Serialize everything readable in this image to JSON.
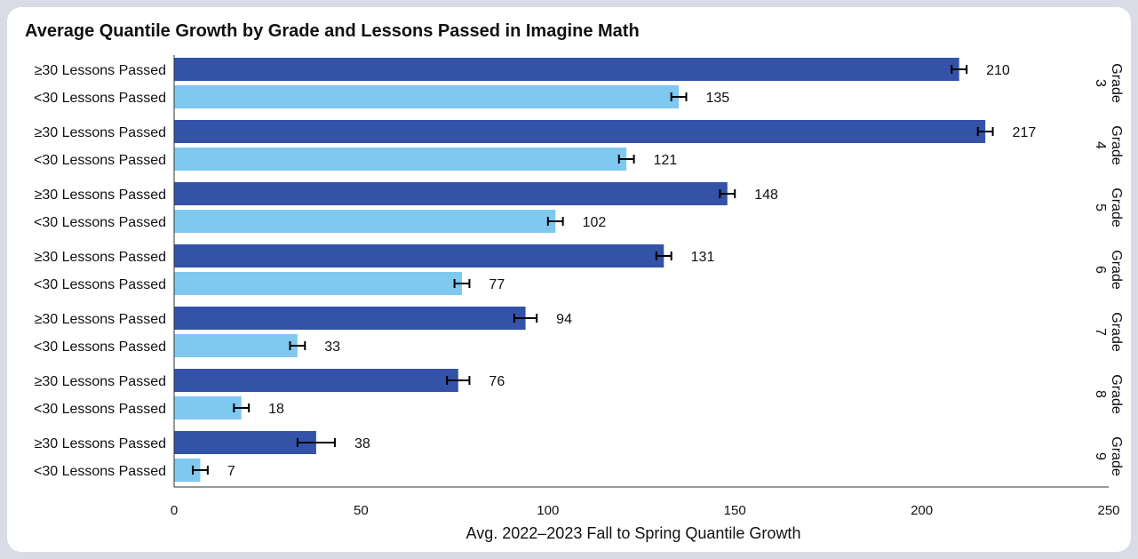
{
  "colors": {
    "ge30": "#3352a8",
    "lt30": "#7fc8f0",
    "error_bar": "#000000",
    "axis": "#333333",
    "background": "#ffffff"
  },
  "chart_data": {
    "type": "bar",
    "orientation": "horizontal",
    "title": "Average Quantile Growth by Grade and Lessons Passed in Imagine Math",
    "xlabel": "Avg. 2022–2023 Fall to Spring Quantile Growth",
    "ylabel": "",
    "xlim": [
      0,
      250
    ],
    "xticks": [
      "0",
      "50",
      "100",
      "150",
      "200",
      "250"
    ],
    "grid": false,
    "legend": "none",
    "series_labels": [
      "≥30 Lessons Passed",
      "<30 Lessons Passed"
    ],
    "groups": [
      {
        "label": "Grade 3",
        "values": [
          210,
          135
        ],
        "errors": [
          2,
          2
        ]
      },
      {
        "label": "Grade 4",
        "values": [
          217,
          121
        ],
        "errors": [
          2,
          2
        ]
      },
      {
        "label": "Grade 5",
        "values": [
          148,
          102
        ],
        "errors": [
          2,
          2
        ]
      },
      {
        "label": "Grade 6",
        "values": [
          131,
          77
        ],
        "errors": [
          2,
          2
        ]
      },
      {
        "label": "Grade 7",
        "values": [
          94,
          33
        ],
        "errors": [
          3,
          2
        ]
      },
      {
        "label": "Grade 8",
        "values": [
          76,
          18
        ],
        "errors": [
          3,
          2
        ]
      },
      {
        "label": "Grade 9",
        "values": [
          38,
          7
        ],
        "errors": [
          5,
          2
        ]
      }
    ]
  }
}
